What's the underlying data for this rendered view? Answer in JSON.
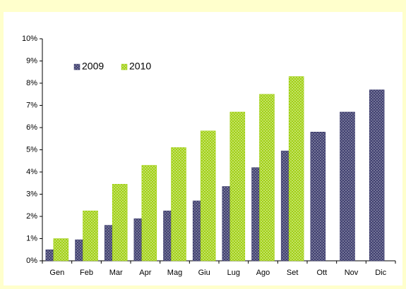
{
  "chart_data": {
    "type": "bar",
    "categories": [
      "Gen",
      "Feb",
      "Mar",
      "Apr",
      "Mag",
      "Giu",
      "Lug",
      "Ago",
      "Set",
      "Ott",
      "Nov",
      "Dic"
    ],
    "series": [
      {
        "name": "2009",
        "color": "#333366",
        "values": [
          0.5,
          0.95,
          1.6,
          1.9,
          2.25,
          2.7,
          3.35,
          4.2,
          4.95,
          5.8,
          6.7,
          7.7
        ]
      },
      {
        "name": "2010",
        "color": "#99cc00",
        "values": [
          1.0,
          2.25,
          3.45,
          4.3,
          5.1,
          5.85,
          6.7,
          7.5,
          8.3,
          null,
          null,
          null
        ]
      }
    ],
    "ylim": [
      0,
      10
    ],
    "yticks": [
      {
        "value": 0,
        "label": "0%"
      },
      {
        "value": 1,
        "label": "1%"
      },
      {
        "value": 2,
        "label": "2%"
      },
      {
        "value": 3,
        "label": "3%"
      },
      {
        "value": 4,
        "label": "4%"
      },
      {
        "value": 5,
        "label": "5%"
      },
      {
        "value": 6,
        "label": "6%"
      },
      {
        "value": 7,
        "label": "7%"
      },
      {
        "value": 8,
        "label": "8%"
      },
      {
        "value": 9,
        "label": "9%"
      },
      {
        "value": 10,
        "label": "10%"
      }
    ],
    "grid": false,
    "legend": "top-left"
  }
}
